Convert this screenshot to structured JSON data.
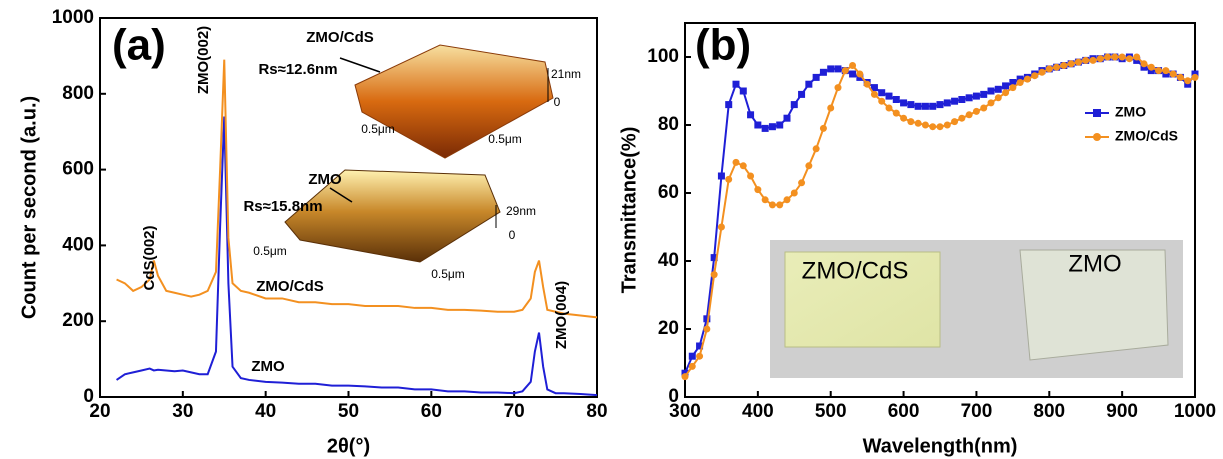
{
  "chart_data": [
    {
      "type": "line",
      "xlabel": "2θ(°)",
      "ylabel": "Count per second (a.u.)",
      "xlim": [
        20,
        80
      ],
      "xticks": [
        20,
        30,
        40,
        50,
        60,
        70,
        80
      ],
      "ylim": [
        0,
        1000
      ],
      "yticks": [
        0,
        200,
        400,
        600,
        800,
        1000
      ],
      "x": [
        22,
        23,
        24,
        25,
        26,
        26.5,
        27,
        28,
        29,
        30,
        31,
        32,
        33,
        34,
        34.5,
        35,
        35.5,
        36,
        37,
        38,
        40,
        42,
        44,
        46,
        48,
        50,
        52,
        54,
        56,
        58,
        60,
        62,
        64,
        66,
        68,
        70,
        71,
        72,
        72.5,
        73,
        73.5,
        74,
        75,
        76,
        78,
        80
      ],
      "series": [
        {
          "name": "ZMO",
          "color": "#1f1fd6",
          "values": [
            45,
            60,
            65,
            70,
            75,
            70,
            72,
            70,
            68,
            70,
            65,
            60,
            60,
            120,
            450,
            740,
            300,
            80,
            50,
            45,
            40,
            38,
            35,
            35,
            30,
            30,
            28,
            25,
            25,
            20,
            20,
            15,
            15,
            12,
            12,
            10,
            15,
            40,
            120,
            170,
            80,
            20,
            10,
            10,
            8,
            5
          ]
        },
        {
          "name": "ZMO/CdS",
          "color": "#f39020",
          "values": [
            310,
            300,
            280,
            290,
            310,
            360,
            320,
            280,
            275,
            270,
            265,
            270,
            280,
            330,
            600,
            890,
            420,
            300,
            280,
            275,
            260,
            260,
            250,
            250,
            245,
            245,
            240,
            240,
            240,
            235,
            235,
            230,
            230,
            228,
            225,
            225,
            230,
            260,
            330,
            360,
            290,
            230,
            225,
            220,
            215,
            210
          ]
        }
      ],
      "annotations": [
        "(a)",
        "CdS(002)",
        "ZMO(002)",
        "ZMO(004)",
        "ZMO/CdS",
        "ZMO",
        "ZMO/CdS",
        "Rs≈12.6nm",
        "21nm",
        "0",
        "0.5μm",
        "0.5μm",
        "ZMO",
        "Rs≈15.8nm",
        "29nm",
        "0",
        "0.5μm",
        "0.5μm"
      ]
    },
    {
      "type": "line",
      "xlabel": "Wavelength(nm)",
      "ylabel": "Transmittance(%)",
      "xlim": [
        300,
        1000
      ],
      "xticks": [
        300,
        400,
        500,
        600,
        700,
        800,
        900,
        1000
      ],
      "ylim": [
        0,
        110
      ],
      "yticks": [
        0,
        20,
        40,
        60,
        80,
        100
      ],
      "legend": "upper right",
      "x": [
        300,
        310,
        320,
        330,
        340,
        350,
        360,
        370,
        380,
        390,
        400,
        410,
        420,
        430,
        440,
        450,
        460,
        470,
        480,
        490,
        500,
        510,
        520,
        530,
        540,
        550,
        560,
        570,
        580,
        590,
        600,
        610,
        620,
        630,
        640,
        650,
        660,
        670,
        680,
        690,
        700,
        710,
        720,
        730,
        740,
        750,
        760,
        770,
        780,
        790,
        800,
        810,
        820,
        830,
        840,
        850,
        860,
        870,
        880,
        890,
        900,
        910,
        920,
        930,
        940,
        950,
        960,
        970,
        980,
        990,
        1000
      ],
      "series": [
        {
          "name": "ZMO",
          "color": "#1f1fd6",
          "marker": "square",
          "values": [
            7,
            12,
            15,
            23,
            41,
            65,
            86,
            92,
            90,
            83,
            80,
            79,
            79.5,
            80,
            82,
            86,
            89,
            92,
            94,
            95.5,
            96.5,
            96.5,
            96,
            95,
            94,
            92.5,
            91,
            89.5,
            88.5,
            87.5,
            86.5,
            86,
            85.5,
            85.5,
            85.5,
            86,
            86.5,
            87,
            87.5,
            88,
            88.5,
            89,
            90,
            90.5,
            91.5,
            92.5,
            93.5,
            94,
            95,
            96,
            96.5,
            97,
            97.5,
            98,
            98.5,
            99,
            99.5,
            99.5,
            100,
            100,
            99.5,
            100,
            99,
            97,
            96,
            96,
            95,
            95,
            94,
            92,
            95
          ]
        },
        {
          "name": "ZMO/CdS",
          "color": "#f39020",
          "marker": "circle",
          "values": [
            6,
            9,
            12,
            20,
            36,
            50,
            64,
            69,
            68,
            65,
            61,
            58,
            56.5,
            56.5,
            58,
            60,
            63,
            68,
            73,
            79,
            85,
            91,
            96,
            97.5,
            95,
            92,
            89,
            87,
            85,
            83.5,
            82,
            81,
            80.5,
            80,
            79.5,
            79.5,
            80,
            81,
            82,
            83,
            84,
            85,
            86.5,
            88,
            89.5,
            91,
            92.5,
            93.5,
            94.5,
            95.5,
            96.5,
            97,
            97.5,
            98,
            98.5,
            99,
            99,
            99.5,
            100,
            100,
            100,
            99.5,
            100,
            98,
            97,
            96,
            96,
            95,
            94,
            93,
            94
          ]
        }
      ],
      "annotations": [
        "(b)",
        "ZMO/CdS",
        "ZMO"
      ]
    }
  ]
}
